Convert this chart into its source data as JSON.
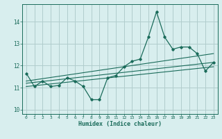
{
  "xlabel": "Humidex (Indice chaleur)",
  "ylabel": "",
  "bg_color": "#d8eeee",
  "grid_color": "#b0cccc",
  "line_color": "#1a6b5a",
  "xlim": [
    -0.5,
    23.5
  ],
  "ylim": [
    9.8,
    14.8
  ],
  "xticks": [
    0,
    1,
    2,
    3,
    4,
    5,
    6,
    7,
    8,
    9,
    10,
    11,
    12,
    13,
    14,
    15,
    16,
    17,
    18,
    19,
    20,
    21,
    22,
    23
  ],
  "yticks": [
    10,
    11,
    12,
    13,
    14
  ],
  "main_x": [
    0,
    1,
    2,
    3,
    4,
    5,
    6,
    7,
    8,
    9,
    10,
    11,
    12,
    13,
    14,
    15,
    16,
    17,
    18,
    19,
    20,
    21,
    22,
    23
  ],
  "main_y": [
    11.65,
    11.05,
    11.3,
    11.05,
    11.1,
    11.45,
    11.3,
    11.05,
    10.45,
    10.45,
    11.45,
    11.55,
    11.95,
    12.2,
    12.3,
    13.3,
    14.45,
    13.3,
    12.75,
    12.85,
    12.85,
    12.55,
    11.75,
    12.15
  ],
  "trend1_x": [
    0,
    23
  ],
  "trend1_y": [
    11.2,
    12.15
  ],
  "trend2_x": [
    0,
    23
  ],
  "trend2_y": [
    11.3,
    12.55
  ],
  "trend3_x": [
    0,
    23
  ],
  "trend3_y": [
    11.05,
    11.95
  ]
}
